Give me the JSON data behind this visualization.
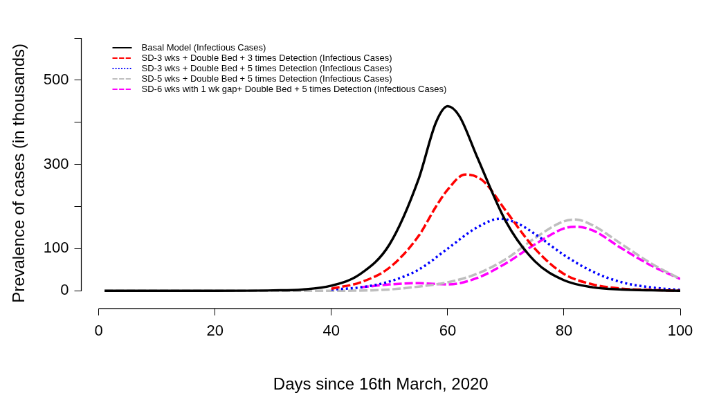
{
  "chart_data": {
    "type": "line",
    "xlabel": "Days since 16th March, 2020",
    "ylabel": "Prevalence of cases (in thousands)",
    "xlim": [
      -3,
      100
    ],
    "ylim": [
      -42,
      600
    ],
    "xticks": [
      0,
      20,
      40,
      60,
      80,
      100
    ],
    "yticks": [
      0,
      100,
      {
        "value": 200,
        "label": null
      },
      300,
      {
        "value": 400,
        "label": null
      },
      500,
      {
        "value": 600,
        "label": null
      }
    ],
    "grid": false,
    "legend": "top left",
    "marker": "none",
    "series": [
      {
        "name": "Basal Model (Infectious Cases)",
        "color": "#000000",
        "line_style": "solid",
        "x": [
          1,
          10,
          20,
          30,
          35,
          40,
          45,
          50,
          55,
          58,
          60,
          62,
          65,
          70,
          75,
          80,
          85,
          90,
          95,
          100
        ],
        "values": [
          0,
          0,
          0,
          1,
          3,
          12,
          40,
          110,
          265,
          400,
          438,
          415,
          320,
          165,
          70,
          25,
          8,
          3,
          1,
          0
        ]
      },
      {
        "name": "SD-3 wks + Double Bed + 3 times Detection (Infectious Cases)",
        "color": "#ff0000",
        "line_style": "dashed",
        "x": [
          40,
          45,
          50,
          55,
          58,
          60,
          63,
          66,
          70,
          75,
          80,
          85,
          90,
          95,
          100
        ],
        "values": [
          5,
          20,
          55,
          130,
          200,
          240,
          276,
          262,
          190,
          100,
          40,
          15,
          5,
          2,
          0
        ]
      },
      {
        "name": "SD-3 wks + Double Bed + 5 times Detection (Infectious Cases)",
        "color": "#0000ff",
        "line_style": "dotted",
        "x": [
          40,
          45,
          50,
          55,
          60,
          65,
          69,
          72,
          75,
          80,
          85,
          90,
          95,
          100
        ],
        "values": [
          3,
          8,
          22,
          50,
          100,
          150,
          171,
          160,
          135,
          85,
          45,
          20,
          8,
          2
        ]
      },
      {
        "name": "SD-5 wks + Double Bed + 5 times Detection (Infectious Cases)",
        "color": "#bebebe",
        "line_style": "dashed",
        "x": [
          1,
          10,
          20,
          30,
          40,
          50,
          55,
          60,
          65,
          70,
          75,
          80,
          82,
          85,
          90,
          95,
          100
        ],
        "values": [
          0,
          0,
          0,
          0,
          0,
          3,
          10,
          20,
          40,
          75,
          125,
          165,
          169,
          155,
          110,
          65,
          28
        ]
      },
      {
        "name": "SD-6 wks with 1 wk gap+ Double Bed + 5 times Detection (Infectious Cases)",
        "color": "#ff00ff",
        "line_style": "dashed",
        "x": [
          45,
          50,
          55,
          60,
          65,
          70,
          75,
          80,
          82,
          85,
          90,
          95,
          100
        ],
        "values": [
          8,
          15,
          18,
          15,
          30,
          65,
          110,
          148,
          152,
          143,
          100,
          60,
          28
        ]
      }
    ]
  }
}
